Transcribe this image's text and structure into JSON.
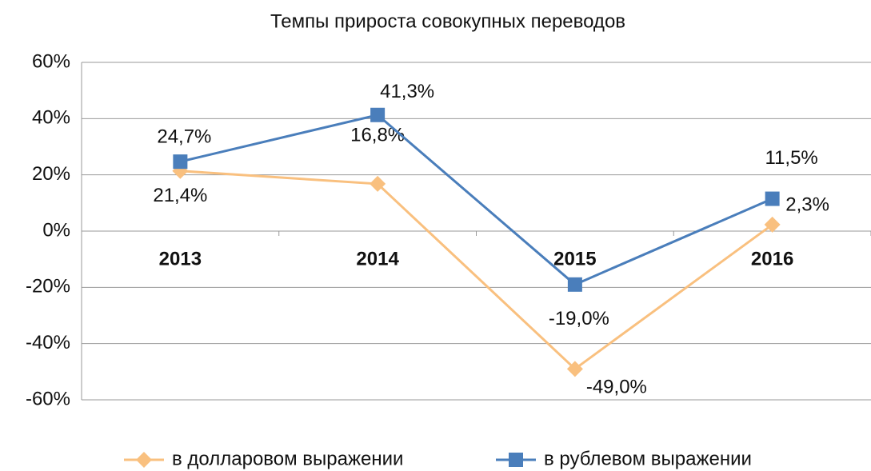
{
  "chart_data": {
    "type": "line",
    "title": "Темпы прироста совокупных переводов",
    "categories": [
      "2013",
      "2014",
      "2015",
      "2016"
    ],
    "series": [
      {
        "name": "в долларовом выражении",
        "color": "#f9c07f",
        "marker": "diamond",
        "values": [
          21.4,
          16.8,
          -49.0,
          2.3
        ],
        "value_labels": [
          "21,4%",
          "16,8%",
          "-49,0%",
          "2,3%"
        ]
      },
      {
        "name": "в рублевом выражении",
        "color": "#4a7ebb",
        "marker": "square",
        "values": [
          24.7,
          41.3,
          -19.0,
          11.5
        ],
        "value_labels": [
          "24,7%",
          "41,3%",
          "-19,0%",
          "11,5%"
        ]
      }
    ],
    "ylim": [
      -60,
      60
    ],
    "yticks": [
      {
        "value": -60,
        "label": "-60%"
      },
      {
        "value": -40,
        "label": "-40%"
      },
      {
        "value": -20,
        "label": "-20%"
      },
      {
        "value": 0,
        "label": "0%"
      },
      {
        "value": 20,
        "label": "20%"
      },
      {
        "value": 40,
        "label": "40%"
      },
      {
        "value": 60,
        "label": "60%"
      }
    ],
    "grid": true,
    "legend": "bottom"
  }
}
